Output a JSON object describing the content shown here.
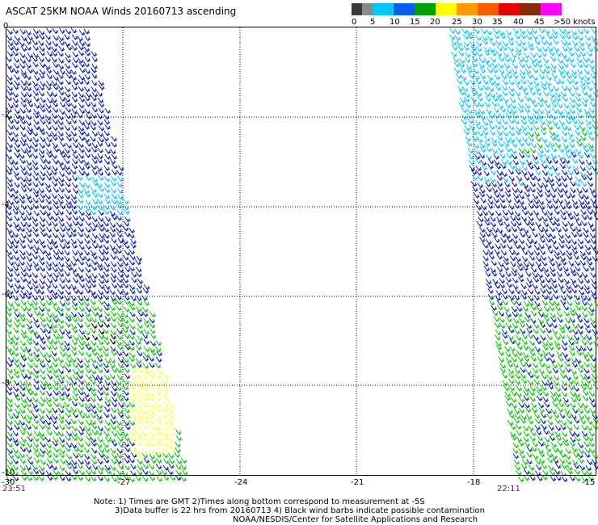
{
  "title": "ASCAT 25KM NOAA Winds 20160713 ascending",
  "colorbar": {
    "labels": [
      "0",
      "5",
      "10",
      "15",
      "20",
      "25",
      "30",
      "35",
      "40",
      "45",
      ">50 knots"
    ],
    "colors": [
      "#3a3a3a",
      "#8a8a8a",
      "#00c8ff",
      "#0a5ef0",
      "#00a000",
      "#ffff00",
      "#ff9a00",
      "#ff5a00",
      "#e60000",
      "#8a2a0a",
      "#ff00ff",
      "#3a0a8a"
    ]
  },
  "axes": {
    "lat_labels": [
      "0",
      "-2",
      "-4",
      "-6",
      "-8",
      "-10"
    ],
    "lon_labels": [
      "-30",
      "-27",
      "-24",
      "-21",
      "-18",
      "-15"
    ]
  },
  "times": {
    "left": "23:51",
    "right": "22:11"
  },
  "notes": {
    "line1": "Note: 1) Times are GMT 2)Times along bottom correspond to measurement at -5S",
    "line2": "3)Data buffer is 22 hrs from 20160713 4) Black wind barbs indicate possible contamination",
    "line3": "NOAA/NESDIS/Center for Satellite Applications and Research"
  },
  "colors": {
    "calm": "#00c8ff",
    "moderate": "#0a1ab0",
    "fresh": "#00c800",
    "strong": "#ffff40",
    "contaminated": "#000000"
  }
}
